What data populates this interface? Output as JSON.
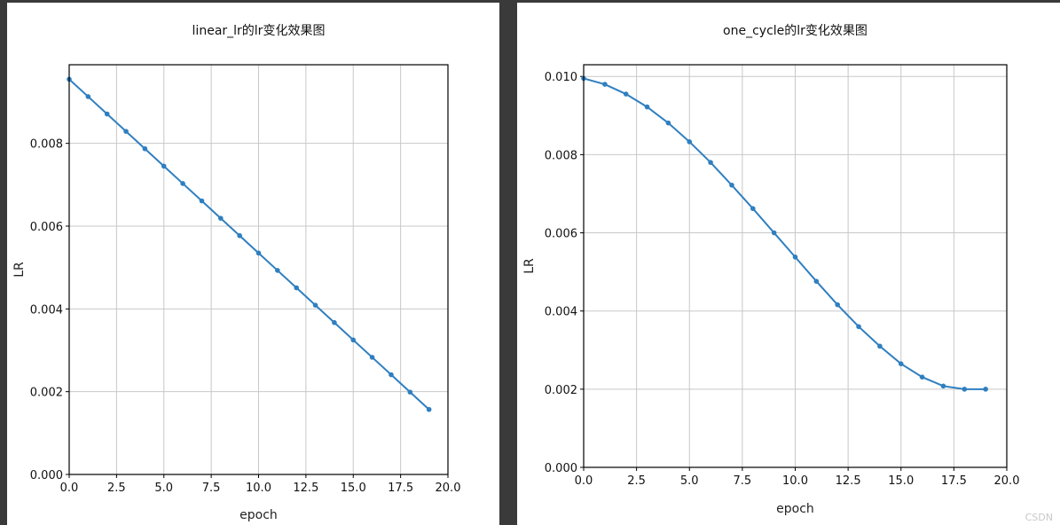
{
  "chart_data": [
    {
      "type": "line",
      "title": "linear_lr的lr变化效果图",
      "xlabel": "epoch",
      "ylabel": "LR",
      "xlim": [
        0,
        20
      ],
      "ylim": [
        0,
        0.0099
      ],
      "x_ticks": [
        "0.0",
        "2.5",
        "5.0",
        "7.5",
        "10.0",
        "12.5",
        "15.0",
        "17.5",
        "20.0"
      ],
      "y_ticks": [
        "0.000",
        "0.002",
        "0.004",
        "0.006",
        "0.008"
      ],
      "x_tick_values": [
        0,
        2.5,
        5,
        7.5,
        10,
        12.5,
        15,
        17.5,
        20
      ],
      "y_tick_values": [
        0,
        0.002,
        0.004,
        0.006,
        0.008
      ],
      "grid": true,
      "color": "#2f7fc0",
      "series": [
        {
          "x": [
            0,
            1,
            2,
            3,
            4,
            5,
            6,
            7,
            8,
            9,
            10,
            11,
            12,
            13,
            14,
            15,
            16,
            17,
            18,
            19
          ],
          "values": [
            0.00955,
            0.00913,
            0.00871,
            0.00829,
            0.00787,
            0.00745,
            0.00703,
            0.00661,
            0.00619,
            0.00577,
            0.00535,
            0.00493,
            0.00451,
            0.00409,
            0.00367,
            0.00325,
            0.00283,
            0.00241,
            0.00199,
            0.00157
          ]
        }
      ]
    },
    {
      "type": "line",
      "title": "one_cycle的lr变化效果图",
      "xlabel": "epoch",
      "ylabel": "LR",
      "xlim": [
        0,
        20
      ],
      "ylim": [
        0,
        0.0103
      ],
      "x_ticks": [
        "0.0",
        "2.5",
        "5.0",
        "7.5",
        "10.0",
        "12.5",
        "15.0",
        "17.5",
        "20.0"
      ],
      "y_ticks": [
        "0.000",
        "0.002",
        "0.004",
        "0.006",
        "0.008",
        "0.010"
      ],
      "x_tick_values": [
        0,
        2.5,
        5,
        7.5,
        10,
        12.5,
        15,
        17.5,
        20
      ],
      "y_tick_values": [
        0,
        0.002,
        0.004,
        0.006,
        0.008,
        0.01
      ],
      "grid": true,
      "color": "#2f7fc0",
      "series": [
        {
          "x": [
            0,
            1,
            2,
            3,
            4,
            5,
            6,
            7,
            8,
            9,
            10,
            11,
            12,
            13,
            14,
            15,
            16,
            17,
            18,
            19
          ],
          "values": [
            0.00995,
            0.0098,
            0.00955,
            0.00922,
            0.00881,
            0.00833,
            0.0078,
            0.00722,
            0.00662,
            0.006,
            0.00538,
            0.00476,
            0.00416,
            0.0036,
            0.0031,
            0.00265,
            0.00231,
            0.00208,
            0.002,
            0.002
          ]
        }
      ]
    }
  ],
  "watermark": "CSDN"
}
